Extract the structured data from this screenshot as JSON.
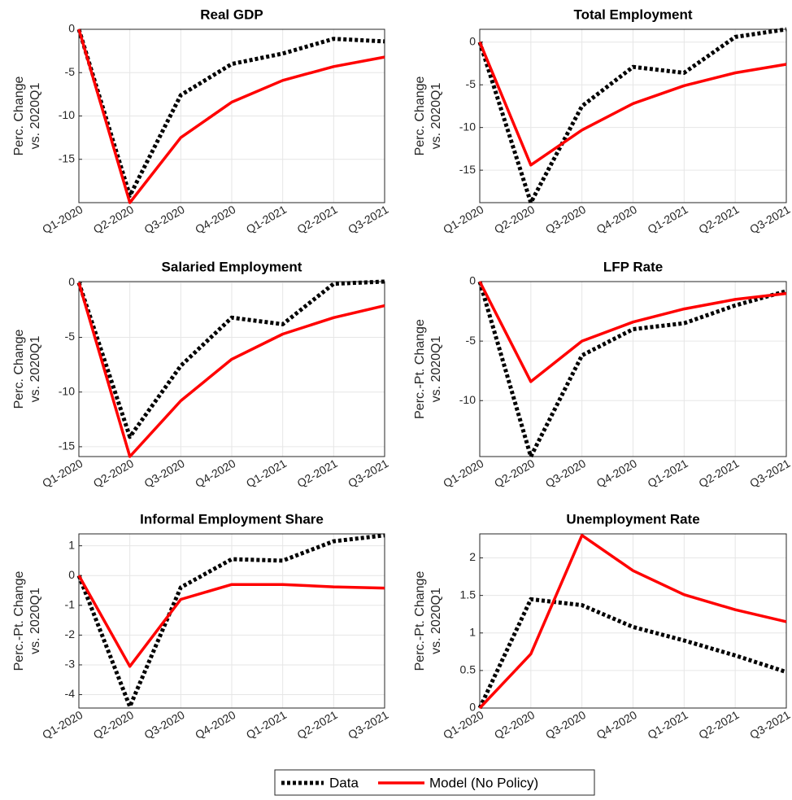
{
  "chart_data": [
    {
      "type": "line",
      "title": "Real GDP",
      "ylabel": [
        "Perc. Change",
        "vs. 2020Q1"
      ],
      "categories": [
        "Q1-2020",
        "Q2-2020",
        "Q3-2020",
        "Q4-2020",
        "Q1-2021",
        "Q2-2021",
        "Q3-2021"
      ],
      "ylim": [
        -20,
        0
      ],
      "yticks": [
        -15,
        -10,
        -5,
        0
      ],
      "grid": true,
      "series": [
        {
          "name": "Data",
          "color": "#000000",
          "linestyle": "dotted",
          "values": [
            0,
            -19.2,
            -7.6,
            -4.0,
            -2.8,
            -1.1,
            -1.4
          ]
        },
        {
          "name": "Model (No Policy)",
          "color": "#ff0000",
          "linestyle": "solid",
          "values": [
            0,
            -20,
            -12.5,
            -8.4,
            -5.9,
            -4.3,
            -3.2
          ]
        }
      ]
    },
    {
      "type": "line",
      "title": "Total Employment",
      "ylabel": [
        "Perc. Change",
        "vs. 2020Q1"
      ],
      "categories": [
        "Q1-2020",
        "Q2-2020",
        "Q3-2020",
        "Q4-2020",
        "Q1-2021",
        "Q2-2021",
        "Q3-2021"
      ],
      "ylim": [
        -18.8,
        1.5
      ],
      "yticks": [
        -15,
        -10,
        -5,
        0
      ],
      "grid": true,
      "series": [
        {
          "name": "Data",
          "color": "#000000",
          "linestyle": "dotted",
          "values": [
            0,
            -18.8,
            -7.5,
            -2.9,
            -3.6,
            0.6,
            1.5
          ]
        },
        {
          "name": "Model (No Policy)",
          "color": "#ff0000",
          "linestyle": "solid",
          "values": [
            0,
            -14.4,
            -10.3,
            -7.2,
            -5.1,
            -3.6,
            -2.6
          ]
        }
      ]
    },
    {
      "type": "line",
      "title": "Salaried Employment",
      "ylabel": [
        "Perc. Change",
        "vs. 2020Q1"
      ],
      "categories": [
        "Q1-2020",
        "Q2-2020",
        "Q3-2020",
        "Q4-2020",
        "Q1-2021",
        "Q2-2021",
        "Q3-2021"
      ],
      "ylim": [
        -15.9,
        0.1
      ],
      "yticks": [
        -15,
        -10,
        -5,
        0
      ],
      "grid": true,
      "series": [
        {
          "name": "Data",
          "color": "#000000",
          "linestyle": "dotted",
          "values": [
            0,
            -14.1,
            -7.6,
            -3.2,
            -3.8,
            -0.1,
            0.1
          ]
        },
        {
          "name": "Model (No Policy)",
          "color": "#ff0000",
          "linestyle": "solid",
          "values": [
            0,
            -15.9,
            -10.8,
            -7.0,
            -4.7,
            -3.2,
            -2.1
          ]
        }
      ]
    },
    {
      "type": "line",
      "title": "LFP Rate",
      "ylabel": [
        "Perc.-Pt. Change",
        "vs. 2020Q1"
      ],
      "categories": [
        "Q1-2020",
        "Q2-2020",
        "Q3-2020",
        "Q4-2020",
        "Q1-2021",
        "Q2-2021",
        "Q3-2021"
      ],
      "ylim": [
        -14.7,
        0
      ],
      "yticks": [
        -10,
        -5,
        0
      ],
      "grid": true,
      "series": [
        {
          "name": "Data",
          "color": "#000000",
          "linestyle": "dotted",
          "values": [
            0,
            -14.7,
            -6.2,
            -4.0,
            -3.5,
            -2.0,
            -0.8
          ]
        },
        {
          "name": "Model (No Policy)",
          "color": "#ff0000",
          "linestyle": "solid",
          "values": [
            0,
            -8.4,
            -5.0,
            -3.4,
            -2.3,
            -1.5,
            -1.0
          ]
        }
      ]
    },
    {
      "type": "line",
      "title": "Informal Employment Share",
      "ylabel": [
        "Perc.-Pt. Change",
        "vs. 2020Q1"
      ],
      "categories": [
        "Q1-2020",
        "Q2-2020",
        "Q3-2020",
        "Q4-2020",
        "Q1-2021",
        "Q2-2021",
        "Q3-2021"
      ],
      "ylim": [
        -4.45,
        1.4
      ],
      "yticks": [
        -4,
        -3,
        -2,
        -1,
        0,
        1
      ],
      "grid": true,
      "series": [
        {
          "name": "Data",
          "color": "#000000",
          "linestyle": "dotted",
          "values": [
            0,
            -4.4,
            -0.4,
            0.55,
            0.5,
            1.15,
            1.35
          ]
        },
        {
          "name": "Model (No Policy)",
          "color": "#ff0000",
          "linestyle": "solid",
          "values": [
            0,
            -3.05,
            -0.8,
            -0.3,
            -0.3,
            -0.38,
            -0.42
          ]
        }
      ]
    },
    {
      "type": "line",
      "title": "Unemployment Rate",
      "ylabel": [
        "Perc.-Pt. Change",
        "vs. 2020Q1"
      ],
      "categories": [
        "Q1-2020",
        "Q2-2020",
        "Q3-2020",
        "Q4-2020",
        "Q1-2021",
        "Q2-2021",
        "Q3-2021"
      ],
      "ylim": [
        0,
        2.32
      ],
      "yticks": [
        0,
        0.5,
        1,
        1.5,
        2
      ],
      "grid": true,
      "series": [
        {
          "name": "Data",
          "color": "#000000",
          "linestyle": "dotted",
          "values": [
            0,
            1.45,
            1.37,
            1.08,
            0.9,
            0.7,
            0.48
          ]
        },
        {
          "name": "Model (No Policy)",
          "color": "#ff0000",
          "linestyle": "solid",
          "values": [
            0,
            0.72,
            2.3,
            1.83,
            1.51,
            1.31,
            1.15
          ]
        }
      ]
    }
  ]
}
